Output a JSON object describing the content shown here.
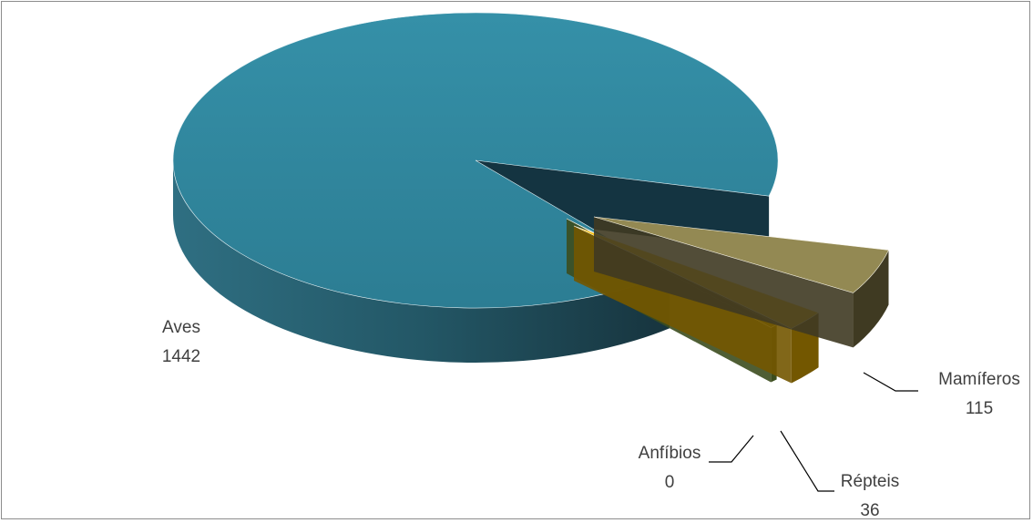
{
  "chart_data": {
    "type": "pie",
    "categories": [
      "Aves",
      "Mamíferos",
      "Répteis",
      "Anfíbios"
    ],
    "values": [
      1442,
      115,
      36,
      0
    ],
    "labels": [
      {
        "name": "Aves",
        "value": "1442"
      },
      {
        "name": "Mamíferos",
        "value": "115"
      },
      {
        "name": "Répteis",
        "value": "36"
      },
      {
        "name": "Anfíbios",
        "value": "0"
      }
    ],
    "colors": {
      "Aves": "#31849b",
      "Mamíferos": "#938953",
      "Répteis": "#ffc000",
      "Anfíbios": "#4f6228"
    },
    "style": "3d-exploded",
    "title": "",
    "legend": "none"
  }
}
